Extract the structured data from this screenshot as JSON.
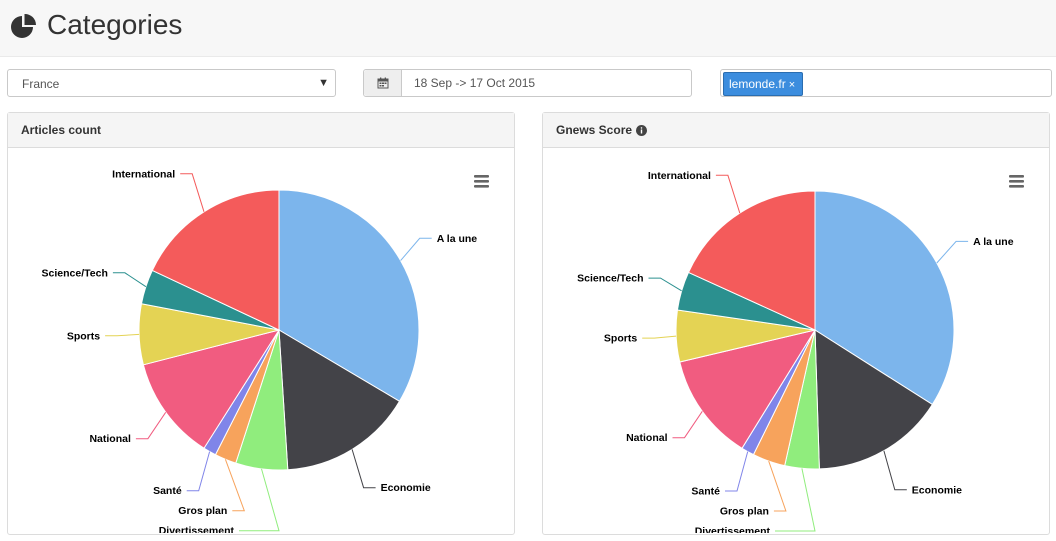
{
  "page": {
    "title": "Categories",
    "icon": "pie-chart-icon"
  },
  "filters": {
    "country": "France",
    "date_range": "18 Sep -> 17 Oct 2015",
    "tags": [
      {
        "label": "lemonde.fr",
        "remove": "×"
      }
    ]
  },
  "panels": [
    {
      "title": "Articles count",
      "info_icon": false
    },
    {
      "title": "Gnews Score",
      "info_icon": true
    }
  ],
  "colors": {
    "A la une": "#7cb5ec",
    "Economie": "#434348",
    "Divertissement": "#90ed7d",
    "Gros plan": "#f7a35c",
    "Santé": "#8085e9",
    "National": "#f15c80",
    "Sports": "#e4d354",
    "Science/Tech": "#2b908f",
    "International": "#f45b5b"
  },
  "chart_data": [
    {
      "type": "pie",
      "title": "Articles count",
      "categories": [
        "A la une",
        "Economie",
        "Divertissement",
        "Gros plan",
        "Santé",
        "National",
        "Sports",
        "Science/Tech",
        "International"
      ],
      "values": [
        33.5,
        15.5,
        6,
        2.5,
        1.5,
        12,
        7,
        4,
        18
      ]
    },
    {
      "type": "pie",
      "title": "Gnews Score",
      "categories": [
        "A la une",
        "Economie",
        "Divertissement",
        "Gros plan",
        "Santé",
        "National",
        "Sports",
        "Science/Tech",
        "International"
      ],
      "values": [
        34,
        15.5,
        4,
        3.8,
        1.5,
        12.5,
        6,
        4.5,
        18.2
      ]
    }
  ]
}
